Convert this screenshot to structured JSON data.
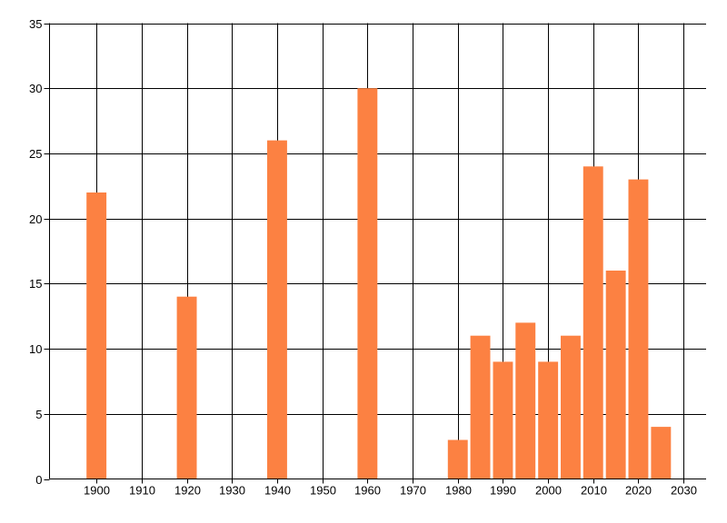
{
  "page": {
    "background_color": "#ffffff"
  },
  "chart_data": {
    "type": "bar",
    "x": [
      1900,
      1920,
      1940,
      1960,
      1980,
      1985,
      1990,
      1995,
      2000,
      2005,
      2010,
      2015,
      2020,
      2025
    ],
    "values": [
      22,
      14,
      26,
      30,
      3,
      11,
      9,
      12,
      9,
      11,
      24,
      16,
      23,
      4
    ],
    "bar_color": "#FC8142",
    "bar_width_years": 4.4,
    "xlim": [
      1889.6,
      2035.0
    ],
    "ylim": [
      0,
      35
    ],
    "x_ticks": [
      1900,
      1910,
      1920,
      1930,
      1940,
      1950,
      1960,
      1970,
      1980,
      1990,
      2000,
      2010,
      2020,
      2030
    ],
    "y_ticks": [
      0,
      5,
      10,
      15,
      20,
      25,
      30,
      35
    ],
    "grid": true,
    "grid_color": "#000000",
    "axis_color": "#000000",
    "tick_label_color": "#000000",
    "legend_position": "none"
  }
}
